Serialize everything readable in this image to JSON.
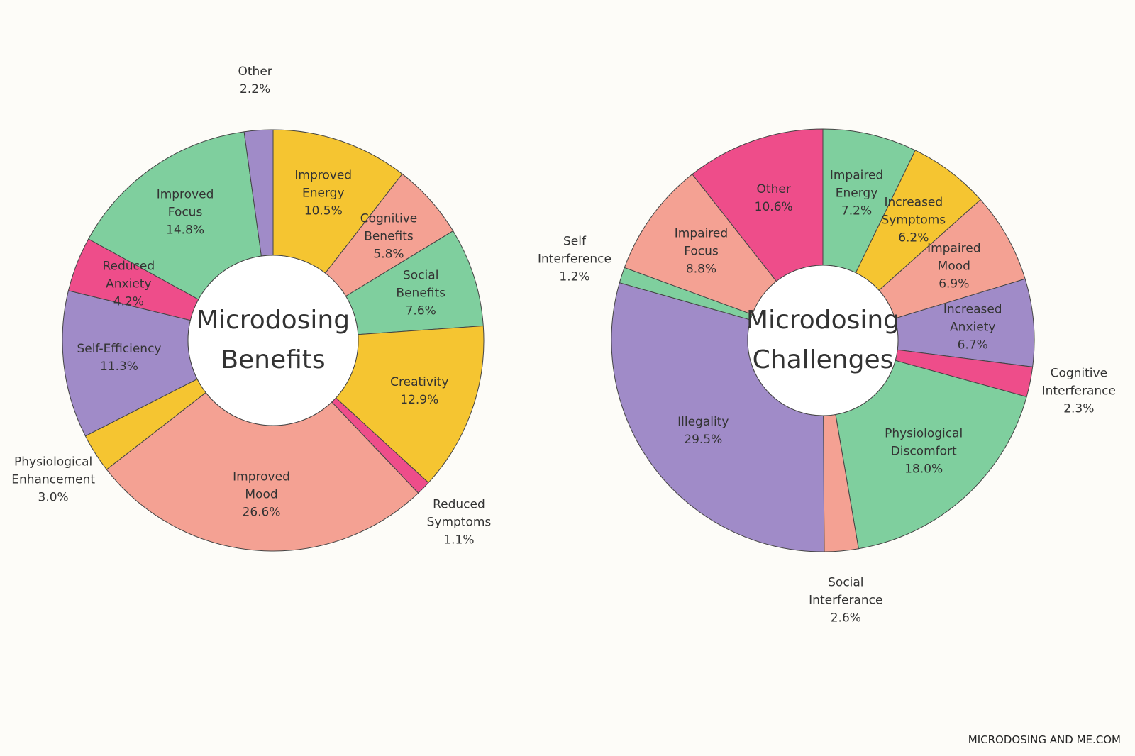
{
  "chart_data": [
    {
      "type": "donut",
      "title": "Microdosing Benefits",
      "categories": [
        "Improved Energy",
        "Cognitive Benefits",
        "Social Benefits",
        "Creativity",
        "Reduced Symptoms",
        "Improved Mood",
        "Physiological Enhancement",
        "Self-Efficiency",
        "Reduced Anxiety",
        "Improved Focus",
        "Other"
      ],
      "values": [
        10.5,
        5.8,
        7.6,
        12.9,
        1.1,
        26.6,
        3.0,
        11.3,
        4.2,
        14.8,
        2.2
      ],
      "value_labels": [
        "10.5%",
        "5.8%",
        "7.6%",
        "12.9%",
        "1.1%",
        "26.6%",
        "3.0%",
        "11.3%",
        "4.2%",
        "14.8%",
        "2.2%"
      ],
      "colors": [
        "#f5c531",
        "#f4a193",
        "#7fcf9e",
        "#f5c531",
        "#ee4d8a",
        "#f4a193",
        "#f5c531",
        "#a08bc8",
        "#ee4d8a",
        "#7fcf9e",
        "#a08bc8"
      ]
    },
    {
      "type": "donut",
      "title": "Microdosing Challenges",
      "categories": [
        "Impaired Energy",
        "Increased Symptoms",
        "Impaired Mood",
        "Increased Anxiety",
        "Cognitive Interferance",
        "Physiological Discomfort",
        "Social Interferance",
        "Illegality",
        "Self Interference",
        "Impaired Focus",
        "Other"
      ],
      "values": [
        7.2,
        6.2,
        6.9,
        6.7,
        2.3,
        18.0,
        2.6,
        29.5,
        1.2,
        8.8,
        10.6
      ],
      "value_labels": [
        "7.2%",
        "6.2%",
        "6.9%",
        "6.7%",
        "2.3%",
        "18.0%",
        "2.6%",
        "29.5%",
        "1.2%",
        "8.8%",
        "10.6%"
      ],
      "colors": [
        "#7fcf9e",
        "#f5c531",
        "#f4a193",
        "#a08bc8",
        "#ee4d8a",
        "#7fcf9e",
        "#f4a193",
        "#a08bc8",
        "#7fcf9e",
        "#f4a193",
        "#ee4d8a"
      ]
    }
  ],
  "footer": "MICRODOSING AND ME.COM"
}
